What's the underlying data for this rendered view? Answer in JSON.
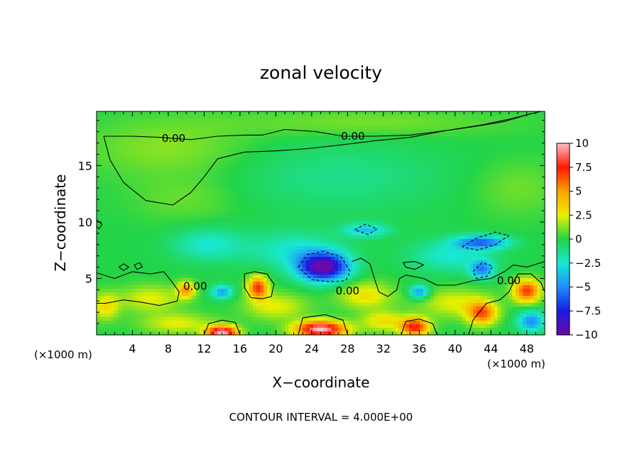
{
  "chart_data": {
    "type": "heatmap",
    "title": "zonal velocity",
    "xlabel": "X−coordinate",
    "ylabel": "Z−coordinate",
    "x_unit": "(×1000 m)",
    "x_unit_right": "(×1000 m)",
    "xlim": [
      0,
      50
    ],
    "ylim": [
      0,
      19.8
    ],
    "x_ticks": [
      4,
      8,
      12,
      16,
      20,
      24,
      28,
      32,
      36,
      40,
      44,
      48
    ],
    "y_ticks": [
      5,
      10,
      15
    ],
    "colorbar": {
      "range": [
        -10,
        10
      ],
      "ticks": [
        10,
        7.5,
        5,
        2.5,
        0,
        -2.5,
        -5,
        -7.5,
        -10
      ],
      "tick_labels": [
        "10",
        "7.5",
        "5",
        "2.5",
        "0",
        "−2.5",
        "−5",
        "−7.5",
        "−10"
      ],
      "colors": [
        {
          "v": -10,
          "c": "#6a0aa8"
        },
        {
          "v": -7.5,
          "c": "#1a1ae0"
        },
        {
          "v": -5,
          "c": "#1e8fff"
        },
        {
          "v": -2.5,
          "c": "#19e8d2"
        },
        {
          "v": 0,
          "c": "#22d448"
        },
        {
          "v": 2.5,
          "c": "#e8f000"
        },
        {
          "v": 5,
          "c": "#ffa000"
        },
        {
          "v": 7.5,
          "c": "#ff1800"
        },
        {
          "v": 10,
          "c": "#ffc0c8"
        }
      ]
    },
    "contour_labels": [
      {
        "text": "0.00",
        "x": 8.6,
        "z": 17.4
      },
      {
        "text": "0.00",
        "x": 28.6,
        "z": 17.6
      },
      {
        "text": "0.00",
        "x": 28.0,
        "z": 3.9
      },
      {
        "text": "0.00",
        "x": 11.0,
        "z": 4.3
      },
      {
        "text": "0.00",
        "x": 46.0,
        "z": 4.8
      }
    ],
    "contour_interval_note": "CONTOUR INTERVAL = 4.000E+00",
    "features": [
      {
        "x": 25.3,
        "z": 6.0,
        "sx": 2.8,
        "sz": 1.25,
        "v": -10
      },
      {
        "x": 30.0,
        "z": 9.3,
        "sx": 2.5,
        "sz": 0.6,
        "v": -3.5
      },
      {
        "x": 12.5,
        "z": 8.0,
        "sx": 4.0,
        "sz": 1.4,
        "v": -2.5
      },
      {
        "x": 22.0,
        "z": 7.5,
        "sx": 5.0,
        "sz": 1.6,
        "v": -2.5
      },
      {
        "x": 39.5,
        "z": 7.0,
        "sx": 4.5,
        "sz": 1.4,
        "v": -2.5
      },
      {
        "x": 43.0,
        "z": 8.2,
        "sx": 3.0,
        "sz": 0.6,
        "v": -5.5
      },
      {
        "x": 43.0,
        "z": 5.8,
        "sx": 1.3,
        "sz": 0.8,
        "v": -5
      },
      {
        "x": 36.0,
        "z": 3.8,
        "sx": 1.1,
        "sz": 0.6,
        "v": -5
      },
      {
        "x": 14.0,
        "z": 3.8,
        "sx": 1.2,
        "sz": 0.6,
        "v": -4.5
      },
      {
        "x": 48.5,
        "z": 1.2,
        "sx": 1.5,
        "sz": 0.9,
        "v": -5
      },
      {
        "x": 18.0,
        "z": 4.2,
        "sx": 1.1,
        "sz": 1.0,
        "v": 7
      },
      {
        "x": 10.0,
        "z": 4.0,
        "sx": 1.0,
        "sz": 0.7,
        "v": 5
      },
      {
        "x": 48.0,
        "z": 3.9,
        "sx": 1.5,
        "sz": 1.0,
        "v": 7
      },
      {
        "x": 43.0,
        "z": 1.9,
        "sx": 1.6,
        "sz": 1.0,
        "v": 6
      },
      {
        "x": 35.5,
        "z": 0.7,
        "sx": 1.6,
        "sz": 0.8,
        "v": 7.5
      },
      {
        "x": 25.0,
        "z": 0.5,
        "sx": 2.8,
        "sz": 0.75,
        "v": 10
      },
      {
        "x": 14.0,
        "z": 0.2,
        "sx": 1.7,
        "sz": 0.6,
        "v": 10
      },
      {
        "x": 6.0,
        "z": 3.2,
        "sx": 3.5,
        "sz": 1.2,
        "v": 2.5
      },
      {
        "x": 1.0,
        "z": 2.5,
        "sx": 1.5,
        "sz": 1.2,
        "v": 3
      },
      {
        "x": 30.0,
        "z": 3.5,
        "sx": 3.0,
        "sz": 1.2,
        "v": 3
      },
      {
        "x": 40.0,
        "z": 2.8,
        "sx": 4.0,
        "sz": 1.3,
        "v": 2.5
      },
      {
        "x": 20.0,
        "z": 2.5,
        "sx": 3.5,
        "sz": 1.2,
        "v": 2.5
      },
      {
        "x": 32.0,
        "z": 1.2,
        "sx": 2.5,
        "sz": 0.9,
        "v": 3
      },
      {
        "x": 9.0,
        "z": 1.0,
        "sx": 4.0,
        "sz": 0.9,
        "v": 2.5
      },
      {
        "x": 8.0,
        "z": 16.5,
        "sx": 9.0,
        "sz": 2.6,
        "v": 1.3
      },
      {
        "x": 30.0,
        "z": 18.8,
        "sx": 16.0,
        "sz": 1.2,
        "v": 1.1
      },
      {
        "x": 27.0,
        "z": 14.0,
        "sx": 12.0,
        "sz": 3.0,
        "v": -1.2
      },
      {
        "x": 10.0,
        "z": 12.0,
        "sx": 6.0,
        "sz": 2.0,
        "v": 0.9
      },
      {
        "x": 47.0,
        "z": 13.0,
        "sx": 5.0,
        "sz": 2.5,
        "v": 1.0
      }
    ],
    "contours": [
      {
        "style": "solid",
        "points": [
          [
            0.8,
            17.6
          ],
          [
            4.0,
            17.6
          ],
          [
            7.0,
            17.5
          ],
          [
            10.5,
            17.3
          ],
          [
            13.5,
            17.6
          ],
          [
            16.5,
            17.7
          ],
          [
            18.5,
            17.7
          ],
          [
            21.0,
            18.2
          ],
          [
            24.5,
            18.0
          ],
          [
            27.5,
            17.6
          ],
          [
            31.0,
            17.6
          ],
          [
            35.0,
            17.7
          ],
          [
            39.0,
            18.1
          ],
          [
            42.5,
            18.5
          ],
          [
            45.5,
            18.9
          ],
          [
            48.0,
            19.5
          ],
          [
            49.6,
            19.8
          ]
        ]
      },
      {
        "style": "solid",
        "points": [
          [
            0.8,
            17.6
          ],
          [
            1.5,
            15.5
          ],
          [
            3.0,
            13.5
          ],
          [
            5.5,
            11.9
          ],
          [
            8.5,
            11.5
          ],
          [
            10.5,
            12.6
          ],
          [
            12.0,
            14.0
          ],
          [
            13.5,
            15.6
          ],
          [
            16.5,
            16.2
          ],
          [
            20.0,
            16.3
          ],
          [
            23.5,
            16.5
          ],
          [
            27.0,
            16.8
          ],
          [
            31.0,
            17.2
          ],
          [
            35.0,
            17.5
          ],
          [
            39.0,
            18.1
          ],
          [
            43.0,
            18.6
          ],
          [
            46.0,
            19.1
          ],
          [
            48.5,
            19.6
          ]
        ]
      },
      {
        "style": "solid",
        "points": [
          [
            0.0,
            5.5
          ],
          [
            2.0,
            5.0
          ],
          [
            4.0,
            5.6
          ],
          [
            6.0,
            5.4
          ],
          [
            7.5,
            5.6
          ],
          [
            8.5,
            4.6
          ],
          [
            9.2,
            3.8
          ],
          [
            9.0,
            3.0
          ],
          [
            7.0,
            2.6
          ],
          [
            5.0,
            2.9
          ],
          [
            3.0,
            3.1
          ],
          [
            1.0,
            2.8
          ],
          [
            0.0,
            2.8
          ]
        ]
      },
      {
        "style": "solid",
        "points": [
          [
            16.5,
            5.4
          ],
          [
            17.6,
            5.6
          ],
          [
            19.0,
            5.4
          ],
          [
            19.8,
            4.5
          ],
          [
            19.5,
            3.4
          ],
          [
            18.5,
            3.2
          ],
          [
            17.2,
            3.3
          ],
          [
            16.5,
            4.2
          ],
          [
            16.5,
            5.4
          ]
        ]
      },
      {
        "style": "solid",
        "points": [
          [
            12.0,
            0.0
          ],
          [
            12.5,
            1.0
          ],
          [
            14.0,
            1.3
          ],
          [
            15.5,
            1.1
          ],
          [
            16.0,
            0.0
          ]
        ]
      },
      {
        "style": "solid",
        "points": [
          [
            22.5,
            0.0
          ],
          [
            23.0,
            1.5
          ],
          [
            25.5,
            1.8
          ],
          [
            27.5,
            1.3
          ],
          [
            28.0,
            0.0
          ]
        ]
      },
      {
        "style": "solid",
        "points": [
          [
            34.0,
            0.0
          ],
          [
            34.5,
            1.2
          ],
          [
            36.0,
            1.4
          ],
          [
            37.5,
            1.0
          ],
          [
            38.0,
            0.0
          ]
        ]
      },
      {
        "style": "solid",
        "points": [
          [
            28.5,
            6.5
          ],
          [
            29.5,
            6.8
          ],
          [
            30.5,
            6.3
          ],
          [
            31.0,
            5.0
          ],
          [
            31.5,
            3.8
          ],
          [
            32.5,
            3.4
          ],
          [
            33.5,
            4.0
          ],
          [
            33.8,
            5.0
          ],
          [
            34.5,
            5.3
          ],
          [
            36.5,
            5.0
          ],
          [
            38.0,
            4.4
          ],
          [
            40.0,
            4.4
          ],
          [
            42.0,
            4.8
          ],
          [
            44.0,
            5.0
          ],
          [
            45.5,
            5.6
          ],
          [
            46.5,
            6.2
          ],
          [
            48.0,
            6.0
          ],
          [
            50.0,
            6.5
          ]
        ]
      },
      {
        "style": "solid",
        "points": [
          [
            41.5,
            0.0
          ],
          [
            42.0,
            1.3
          ],
          [
            43.5,
            2.8
          ],
          [
            45.0,
            3.1
          ],
          [
            46.0,
            3.8
          ],
          [
            47.0,
            5.4
          ],
          [
            48.5,
            5.4
          ],
          [
            49.6,
            4.6
          ],
          [
            50.0,
            3.8
          ]
        ]
      },
      {
        "style": "solid",
        "points": [
          [
            2.5,
            6.0
          ],
          [
            3.0,
            6.3
          ],
          [
            3.6,
            6.0
          ],
          [
            3.0,
            5.7
          ],
          [
            2.5,
            6.0
          ]
        ]
      },
      {
        "style": "solid",
        "points": [
          [
            4.2,
            6.2
          ],
          [
            4.8,
            6.4
          ],
          [
            5.1,
            6.0
          ],
          [
            4.5,
            5.8
          ],
          [
            4.2,
            6.2
          ]
        ]
      },
      {
        "style": "solid",
        "points": [
          [
            34.2,
            6.4
          ],
          [
            35.5,
            6.5
          ],
          [
            36.5,
            6.2
          ],
          [
            35.5,
            5.8
          ],
          [
            34.5,
            6.0
          ],
          [
            34.2,
            6.4
          ]
        ]
      },
      {
        "style": "solid",
        "points": [
          [
            0.0,
            10.2
          ],
          [
            0.6,
            9.8
          ],
          [
            0.3,
            9.4
          ],
          [
            0.0,
            9.6
          ]
        ]
      },
      {
        "style": "dashed",
        "points": [
          [
            22.5,
            6.0
          ],
          [
            23.5,
            7.1
          ],
          [
            25.3,
            7.4
          ],
          [
            27.3,
            6.9
          ],
          [
            28.3,
            5.6
          ],
          [
            27.8,
            4.8
          ],
          [
            26.0,
            4.7
          ],
          [
            24.0,
            4.9
          ],
          [
            22.5,
            6.0
          ]
        ]
      },
      {
        "style": "dashed",
        "points": [
          [
            28.8,
            9.3
          ],
          [
            30.0,
            9.8
          ],
          [
            31.3,
            9.4
          ],
          [
            30.3,
            8.9
          ],
          [
            28.8,
            9.3
          ]
        ]
      },
      {
        "style": "dashed",
        "points": [
          [
            40.8,
            7.8
          ],
          [
            42.5,
            8.6
          ],
          [
            44.5,
            9.1
          ],
          [
            46.0,
            8.8
          ],
          [
            44.5,
            8.0
          ],
          [
            42.5,
            7.5
          ],
          [
            40.8,
            7.8
          ]
        ]
      },
      {
        "style": "dashed",
        "points": [
          [
            42.0,
            5.6
          ],
          [
            43.0,
            6.4
          ],
          [
            44.2,
            6.1
          ],
          [
            43.6,
            5.2
          ],
          [
            42.4,
            5.0
          ],
          [
            42.0,
            5.6
          ]
        ]
      }
    ]
  }
}
